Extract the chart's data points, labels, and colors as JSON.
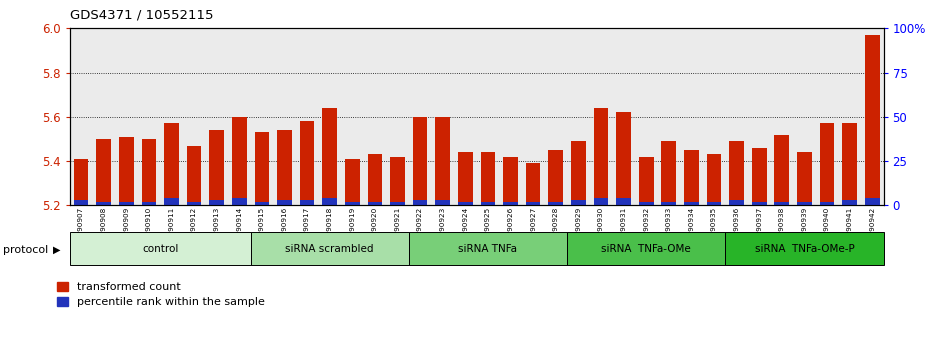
{
  "title": "GDS4371 / 10552115",
  "samples": [
    "GSM790907",
    "GSM790908",
    "GSM790909",
    "GSM790910",
    "GSM790911",
    "GSM790912",
    "GSM790913",
    "GSM790914",
    "GSM790915",
    "GSM790916",
    "GSM790917",
    "GSM790918",
    "GSM790919",
    "GSM790920",
    "GSM790921",
    "GSM790922",
    "GSM790923",
    "GSM790924",
    "GSM790925",
    "GSM790926",
    "GSM790927",
    "GSM790928",
    "GSM790929",
    "GSM790930",
    "GSM790931",
    "GSM790932",
    "GSM790933",
    "GSM790934",
    "GSM790935",
    "GSM790936",
    "GSM790937",
    "GSM790938",
    "GSM790939",
    "GSM790940",
    "GSM790941",
    "GSM790942"
  ],
  "red_values": [
    5.41,
    5.5,
    5.51,
    5.5,
    5.57,
    5.47,
    5.54,
    5.6,
    5.53,
    5.54,
    5.58,
    5.64,
    5.41,
    5.43,
    5.42,
    5.6,
    5.6,
    5.44,
    5.44,
    5.42,
    5.39,
    5.45,
    5.49,
    5.64,
    5.62,
    5.42,
    5.49,
    5.45,
    5.43,
    5.49,
    5.46,
    5.52,
    5.44,
    5.57,
    5.57,
    5.97
  ],
  "blue_percentile": [
    3,
    2,
    2,
    2,
    4,
    2,
    3,
    4,
    2,
    3,
    3,
    4,
    2,
    2,
    2,
    3,
    3,
    2,
    2,
    2,
    2,
    2,
    3,
    4,
    4,
    2,
    2,
    2,
    2,
    3,
    2,
    2,
    2,
    2,
    3,
    4
  ],
  "groups": [
    {
      "label": "control",
      "start": 0,
      "end": 8,
      "color": "#d4f0d4"
    },
    {
      "label": "siRNA scrambled",
      "start": 8,
      "end": 15,
      "color": "#a8dfa8"
    },
    {
      "label": "siRNA TNFa",
      "start": 15,
      "end": 22,
      "color": "#78cf78"
    },
    {
      "label": "siRNA  TNFa-OMe",
      "start": 22,
      "end": 29,
      "color": "#4abf4a"
    },
    {
      "label": "siRNA  TNFa-OMe-P",
      "start": 29,
      "end": 36,
      "color": "#28b428"
    }
  ],
  "ylim_left": [
    5.2,
    6.0
  ],
  "ylim_right": [
    0,
    100
  ],
  "right_ticks": [
    0,
    25,
    50,
    75,
    100
  ],
  "right_tick_labels": [
    "0",
    "25",
    "50",
    "75",
    "100%"
  ],
  "left_ticks": [
    5.2,
    5.4,
    5.6,
    5.8,
    6.0
  ],
  "grid_lines": [
    5.4,
    5.6,
    5.8
  ],
  "bar_color_red": "#cc2200",
  "bar_color_blue": "#2233bb",
  "bar_width": 0.65,
  "protocol_label": "protocol",
  "legend_red": "transformed count",
  "legend_blue": "percentile rank within the sample"
}
